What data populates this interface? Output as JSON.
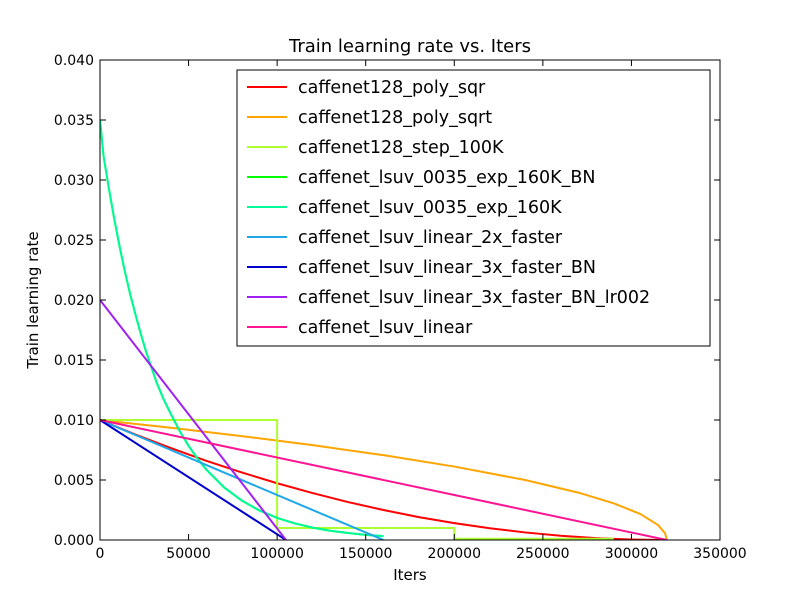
{
  "chart_data": {
    "type": "line",
    "title": "Train learning rate  vs. Iters",
    "xlabel": "Iters",
    "ylabel": "Train learning rate",
    "xlim": [
      0,
      350000
    ],
    "ylim": [
      0,
      0.04
    ],
    "xticks": [
      0,
      50000,
      100000,
      150000,
      200000,
      250000,
      300000,
      350000
    ],
    "xtick_labels": [
      "0",
      "50000",
      "100000",
      "150000",
      "200000",
      "250000",
      "300000",
      "350000"
    ],
    "yticks": [
      0,
      0.005,
      0.01,
      0.015,
      0.02,
      0.025,
      0.03,
      0.035,
      0.04
    ],
    "ytick_labels": [
      "0.000",
      "0.005",
      "0.010",
      "0.015",
      "0.020",
      "0.025",
      "0.030",
      "0.035",
      "0.040"
    ],
    "grid": false,
    "legend_position": "top-right",
    "series": [
      {
        "name": "caffenet128_poly_sqr",
        "color": "#ff0000",
        "x": [
          0,
          20000,
          40000,
          60000,
          80000,
          100000,
          120000,
          140000,
          160000,
          180000,
          200000,
          220000,
          240000,
          260000,
          280000,
          290000,
          300000,
          320000
        ],
        "y": [
          0.01,
          0.00879,
          0.00766,
          0.0066,
          0.00563,
          0.00473,
          0.00391,
          0.00316,
          0.0025,
          0.00191,
          0.00141,
          0.00098,
          0.00063,
          0.00035,
          0.00016,
          9e-05,
          4e-05,
          0
        ]
      },
      {
        "name": "caffenet128_poly_sqrt",
        "color": "#ffa500",
        "x": [
          0,
          40000,
          80000,
          120000,
          160000,
          200000,
          240000,
          270000,
          290000,
          305000,
          315000,
          319000,
          320000
        ],
        "y": [
          0.01,
          0.00935,
          0.00866,
          0.00791,
          0.00707,
          0.00612,
          0.005,
          0.00395,
          0.00306,
          0.00217,
          0.00125,
          0.00056,
          0
        ]
      },
      {
        "name": "caffenet128_step_100K",
        "color": "#adff2f",
        "x": [
          0,
          100000,
          100000,
          200000,
          200000,
          290000
        ],
        "y": [
          0.01,
          0.01,
          0.001,
          0.001,
          0.0001,
          0.0001
        ]
      },
      {
        "name": "caffenet_lsuv_0035_exp_160K_BN",
        "color": "#00ff00",
        "x": [
          0,
          2000,
          5000,
          8000,
          11000,
          14000,
          17000,
          20000,
          23000,
          26000,
          29000,
          32000,
          36000,
          40000,
          45000,
          50000,
          55000,
          60000,
          70000,
          80000,
          90000,
          100000,
          110000,
          120000,
          130000,
          140000,
          150000,
          160000
        ],
        "y": [
          0.035,
          0.032,
          0.0293,
          0.0268,
          0.0245,
          0.0224,
          0.0205,
          0.0188,
          0.0172,
          0.0157,
          0.0144,
          0.0131,
          0.0117,
          0.0105,
          0.00908,
          0.00785,
          0.00679,
          0.00587,
          0.00439,
          0.00329,
          0.00246,
          0.00184,
          0.00138,
          0.00103,
          0.00077,
          0.00058,
          0.00043,
          0.00032
        ]
      },
      {
        "name": "caffenet_lsuv_0035_exp_160K",
        "color": "#00fa9a",
        "x": [
          0,
          2000,
          5000,
          8000,
          11000,
          14000,
          17000,
          20000,
          23000,
          26000,
          29000,
          32000,
          36000,
          40000,
          45000,
          50000,
          55000,
          60000,
          70000,
          80000,
          90000,
          100000,
          110000,
          120000,
          130000,
          140000,
          150000,
          160000
        ],
        "y": [
          0.035,
          0.032,
          0.0293,
          0.0268,
          0.0245,
          0.0224,
          0.0205,
          0.0188,
          0.0172,
          0.0157,
          0.0144,
          0.0131,
          0.0117,
          0.0105,
          0.00908,
          0.00785,
          0.00679,
          0.00587,
          0.00439,
          0.00329,
          0.00246,
          0.00184,
          0.00138,
          0.00103,
          0.00077,
          0.00058,
          0.00043,
          0.00032
        ]
      },
      {
        "name": "caffenet_lsuv_linear_2x_faster",
        "color": "#1ea8e8",
        "x": [
          0,
          160000
        ],
        "y": [
          0.01,
          0
        ]
      },
      {
        "name": "caffenet_lsuv_linear_3x_faster_BN",
        "color": "#0000cd",
        "x": [
          0,
          105000
        ],
        "y": [
          0.01,
          0
        ]
      },
      {
        "name": "caffenet_lsuv_linear_3x_faster_BN_lr002",
        "color": "#a020f0",
        "x": [
          0,
          105000
        ],
        "y": [
          0.02,
          0
        ]
      },
      {
        "name": "caffenet_lsuv_linear",
        "color": "#ff1493",
        "x": [
          0,
          320000
        ],
        "y": [
          0.01,
          0
        ]
      }
    ]
  }
}
